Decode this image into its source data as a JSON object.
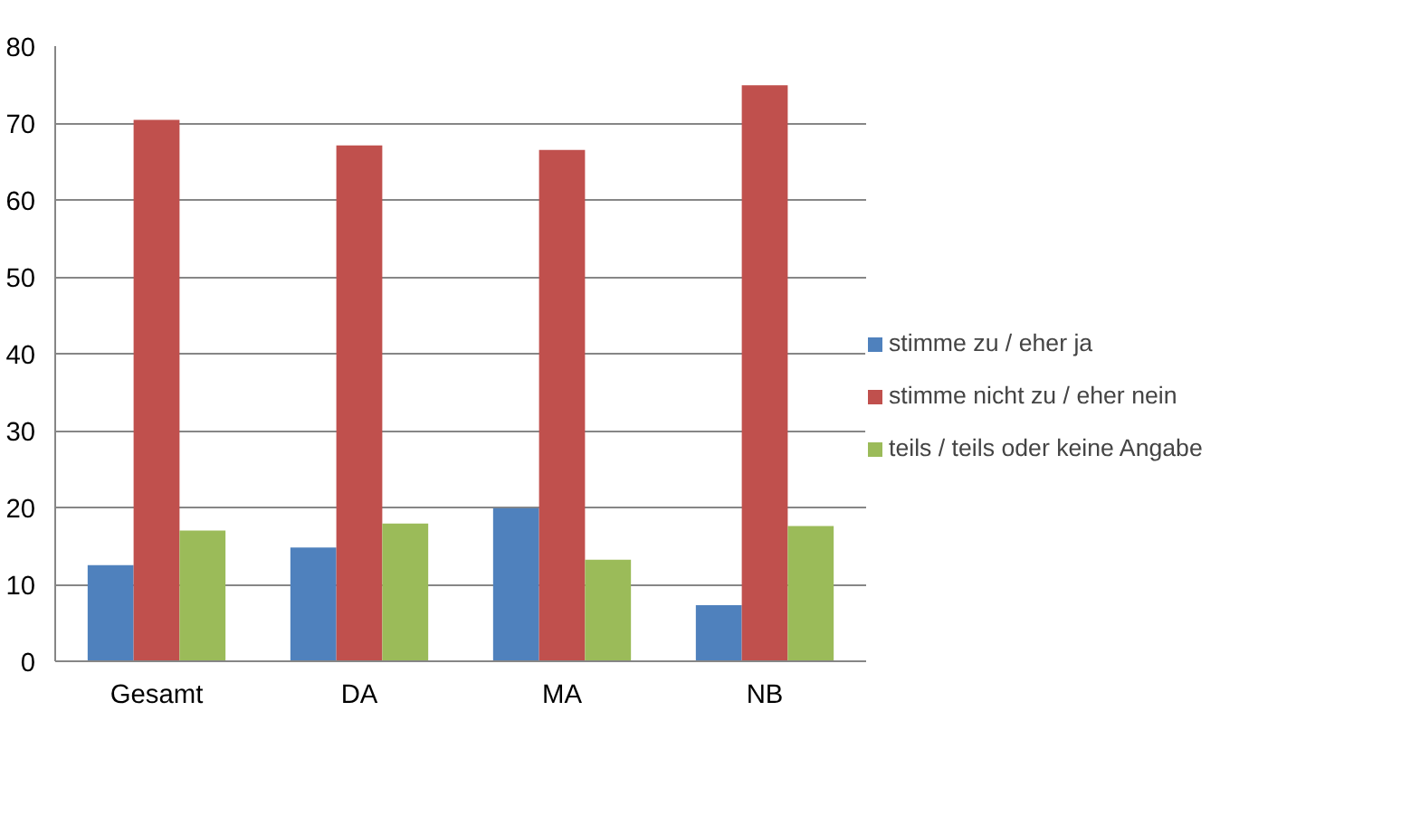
{
  "chart_data": {
    "type": "bar",
    "categories": [
      "Gesamt",
      "DA",
      "MA",
      "NB"
    ],
    "series": [
      {
        "name": "stimme zu / eher ja",
        "color": "#4f81bd",
        "values": [
          12.5,
          14.8,
          19.9,
          7.3
        ]
      },
      {
        "name": "stimme nicht zu / eher nein",
        "color": "#c0504d",
        "values": [
          70.4,
          67.1,
          66.5,
          74.9
        ]
      },
      {
        "name": "teils / teils oder keine Angabe",
        "color": "#9bbb59",
        "values": [
          17.0,
          17.9,
          13.2,
          17.6
        ]
      }
    ],
    "ylim": [
      0,
      80
    ],
    "yticks": [
      0,
      10,
      20,
      30,
      40,
      50,
      60,
      70,
      80
    ],
    "grid": "y",
    "legend": "right"
  }
}
